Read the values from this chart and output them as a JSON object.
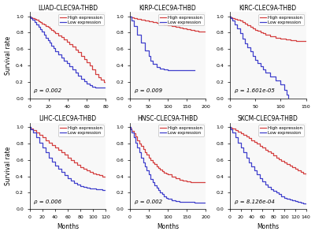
{
  "panels": [
    {
      "title": "LUAD-CLEC9A-THBD",
      "pval": "ρ = 0.002",
      "xlim": [
        0,
        80
      ],
      "xticks": [
        0,
        20,
        40,
        60,
        80
      ],
      "high": {
        "x": [
          0,
          1,
          3,
          5,
          7,
          9,
          11,
          13,
          15,
          17,
          19,
          21,
          23,
          25,
          27,
          30,
          33,
          36,
          39,
          42,
          45,
          48,
          51,
          54,
          57,
          60,
          63,
          66,
          69,
          72,
          75,
          78,
          80
        ],
        "y": [
          1.0,
          0.99,
          0.98,
          0.97,
          0.96,
          0.94,
          0.93,
          0.91,
          0.9,
          0.88,
          0.87,
          0.85,
          0.83,
          0.81,
          0.79,
          0.77,
          0.75,
          0.72,
          0.69,
          0.66,
          0.63,
          0.59,
          0.56,
          0.52,
          0.48,
          0.44,
          0.4,
          0.35,
          0.3,
          0.26,
          0.23,
          0.2,
          0.19
        ]
      },
      "low": {
        "x": [
          0,
          1,
          3,
          5,
          7,
          9,
          11,
          13,
          15,
          17,
          19,
          21,
          23,
          25,
          27,
          30,
          33,
          36,
          39,
          42,
          45,
          48,
          51,
          54,
          57,
          60,
          63,
          66,
          69,
          72,
          75,
          78,
          80
        ],
        "y": [
          1.0,
          0.98,
          0.96,
          0.93,
          0.9,
          0.87,
          0.84,
          0.81,
          0.78,
          0.74,
          0.71,
          0.68,
          0.64,
          0.61,
          0.57,
          0.54,
          0.5,
          0.46,
          0.43,
          0.39,
          0.35,
          0.32,
          0.28,
          0.24,
          0.21,
          0.18,
          0.16,
          0.14,
          0.13,
          0.13,
          0.13,
          0.13,
          0.13
        ]
      }
    },
    {
      "title": "KIRP-CLEC9A-THBD",
      "pval": "ρ = 0.009",
      "xlim": [
        0,
        200
      ],
      "xticks": [
        0,
        50,
        100,
        150,
        200
      ],
      "high": {
        "x": [
          0,
          5,
          10,
          20,
          30,
          40,
          50,
          60,
          70,
          80,
          90,
          100,
          110,
          120,
          130,
          140,
          150,
          160,
          170,
          180,
          190,
          200
        ],
        "y": [
          1.0,
          0.99,
          0.98,
          0.97,
          0.96,
          0.95,
          0.94,
          0.93,
          0.92,
          0.91,
          0.9,
          0.89,
          0.88,
          0.87,
          0.86,
          0.85,
          0.84,
          0.83,
          0.82,
          0.81,
          0.81,
          0.81
        ]
      },
      "low": {
        "x": [
          0,
          5,
          10,
          20,
          30,
          40,
          50,
          55,
          60,
          70,
          80,
          90,
          100,
          110,
          120,
          130,
          140,
          150,
          160,
          170
        ],
        "y": [
          1.0,
          0.95,
          0.88,
          0.78,
          0.68,
          0.58,
          0.52,
          0.46,
          0.42,
          0.38,
          0.36,
          0.35,
          0.34,
          0.34,
          0.34,
          0.34,
          0.34,
          0.34,
          0.34,
          0.34
        ]
      }
    },
    {
      "title": "KIRC-CLEC9A-THBD",
      "pval": "ρ = 1.601e-05",
      "xlim": [
        0,
        150
      ],
      "xticks": [
        0,
        50,
        100,
        150
      ],
      "high": {
        "x": [
          0,
          2,
          5,
          10,
          15,
          20,
          25,
          30,
          35,
          40,
          45,
          50,
          55,
          60,
          65,
          70,
          80,
          90,
          100,
          110,
          120,
          130,
          140,
          150
        ],
        "y": [
          1.0,
          0.99,
          0.98,
          0.97,
          0.96,
          0.95,
          0.93,
          0.91,
          0.89,
          0.87,
          0.85,
          0.83,
          0.82,
          0.8,
          0.79,
          0.78,
          0.76,
          0.74,
          0.73,
          0.72,
          0.71,
          0.7,
          0.7,
          0.7
        ]
      },
      "low": {
        "x": [
          0,
          2,
          5,
          10,
          15,
          20,
          25,
          30,
          35,
          40,
          45,
          50,
          55,
          60,
          65,
          70,
          80,
          90,
          100,
          108,
          112,
          115
        ],
        "y": [
          1.0,
          0.98,
          0.95,
          0.9,
          0.85,
          0.79,
          0.73,
          0.67,
          0.62,
          0.57,
          0.52,
          0.47,
          0.43,
          0.39,
          0.35,
          0.32,
          0.27,
          0.22,
          0.17,
          0.1,
          0.05,
          0.0
        ]
      }
    },
    {
      "title": "LIHC-CLEC9A-THBD",
      "pval": "ρ = 0.006",
      "xlim": [
        0,
        120
      ],
      "xticks": [
        0,
        20,
        40,
        60,
        80,
        100,
        120
      ],
      "high": {
        "x": [
          0,
          2,
          5,
          10,
          15,
          20,
          25,
          30,
          35,
          40,
          45,
          50,
          55,
          60,
          65,
          70,
          75,
          80,
          85,
          90,
          95,
          100,
          105,
          110,
          115,
          120
        ],
        "y": [
          1.0,
          0.98,
          0.96,
          0.93,
          0.9,
          0.87,
          0.84,
          0.81,
          0.78,
          0.75,
          0.72,
          0.69,
          0.66,
          0.63,
          0.6,
          0.57,
          0.54,
          0.51,
          0.49,
          0.47,
          0.45,
          0.43,
          0.42,
          0.41,
          0.4,
          0.39
        ]
      },
      "low": {
        "x": [
          0,
          2,
          5,
          10,
          15,
          20,
          25,
          30,
          35,
          40,
          45,
          50,
          55,
          60,
          65,
          70,
          75,
          80,
          85,
          90,
          95,
          100,
          105,
          110,
          115,
          120
        ],
        "y": [
          1.0,
          0.97,
          0.93,
          0.87,
          0.81,
          0.75,
          0.69,
          0.63,
          0.58,
          0.53,
          0.49,
          0.45,
          0.41,
          0.38,
          0.35,
          0.32,
          0.3,
          0.28,
          0.27,
          0.26,
          0.25,
          0.25,
          0.24,
          0.24,
          0.23,
          0.23
        ]
      }
    },
    {
      "title": "HNSC-CLEC9A-THBD",
      "pval": "ρ = 0.002",
      "xlim": [
        0,
        200
      ],
      "xticks": [
        0,
        50,
        100,
        150,
        200
      ],
      "high": {
        "x": [
          0,
          2,
          5,
          10,
          15,
          20,
          25,
          30,
          35,
          40,
          45,
          50,
          55,
          60,
          65,
          70,
          75,
          80,
          85,
          90,
          95,
          100,
          110,
          120,
          130,
          140,
          150,
          160,
          170,
          180,
          200
        ],
        "y": [
          1.0,
          0.98,
          0.95,
          0.92,
          0.88,
          0.84,
          0.8,
          0.77,
          0.73,
          0.69,
          0.66,
          0.63,
          0.6,
          0.57,
          0.55,
          0.52,
          0.5,
          0.48,
          0.46,
          0.44,
          0.43,
          0.42,
          0.4,
          0.38,
          0.36,
          0.35,
          0.34,
          0.33,
          0.33,
          0.33,
          0.33
        ]
      },
      "low": {
        "x": [
          0,
          2,
          5,
          10,
          15,
          20,
          25,
          30,
          35,
          40,
          45,
          50,
          55,
          60,
          65,
          70,
          75,
          80,
          85,
          90,
          95,
          100,
          110,
          120,
          130,
          140,
          150,
          160,
          170,
          180,
          200
        ],
        "y": [
          1.0,
          0.97,
          0.93,
          0.87,
          0.81,
          0.75,
          0.69,
          0.63,
          0.57,
          0.52,
          0.47,
          0.42,
          0.37,
          0.33,
          0.29,
          0.26,
          0.23,
          0.2,
          0.18,
          0.16,
          0.14,
          0.13,
          0.11,
          0.1,
          0.09,
          0.09,
          0.09,
          0.09,
          0.08,
          0.08,
          0.08
        ]
      }
    },
    {
      "title": "SKCM-CLEC9A-THBD",
      "pval": "ρ = 8.126e-04",
      "xlim": [
        0,
        140
      ],
      "xticks": [
        0,
        20,
        40,
        60,
        80,
        100,
        120,
        140
      ],
      "high": {
        "x": [
          0,
          2,
          5,
          10,
          15,
          20,
          25,
          30,
          35,
          40,
          45,
          50,
          55,
          60,
          65,
          70,
          75,
          80,
          85,
          90,
          95,
          100,
          105,
          110,
          115,
          120,
          125,
          130,
          135,
          140
        ],
        "y": [
          1.0,
          0.99,
          0.98,
          0.96,
          0.94,
          0.92,
          0.9,
          0.88,
          0.86,
          0.84,
          0.82,
          0.8,
          0.77,
          0.75,
          0.72,
          0.7,
          0.68,
          0.65,
          0.63,
          0.61,
          0.59,
          0.57,
          0.55,
          0.53,
          0.51,
          0.49,
          0.47,
          0.45,
          0.43,
          0.41
        ]
      },
      "low": {
        "x": [
          0,
          2,
          5,
          10,
          15,
          20,
          25,
          30,
          35,
          40,
          45,
          50,
          55,
          60,
          65,
          70,
          75,
          80,
          85,
          90,
          95,
          100,
          105,
          110,
          115,
          120,
          125,
          130,
          135,
          140
        ],
        "y": [
          1.0,
          0.97,
          0.93,
          0.87,
          0.81,
          0.75,
          0.69,
          0.63,
          0.57,
          0.52,
          0.47,
          0.42,
          0.38,
          0.34,
          0.3,
          0.27,
          0.24,
          0.22,
          0.2,
          0.18,
          0.16,
          0.14,
          0.13,
          0.12,
          0.11,
          0.1,
          0.09,
          0.08,
          0.07,
          0.06
        ]
      }
    }
  ],
  "high_color": "#d44040",
  "low_color": "#4040cc",
  "ylabel": "Survival rate",
  "xlabel": "Months",
  "bg_color": "#ffffff",
  "panel_bg": "#f8f8f8",
  "legend_labels": [
    "High expression",
    "Low expression"
  ],
  "yticks": [
    0.0,
    0.2,
    0.4,
    0.6,
    0.8,
    1.0
  ],
  "ytick_labels": [
    "0.0",
    "0.2",
    "0.4",
    "0.6",
    "0.8",
    "1.0"
  ]
}
